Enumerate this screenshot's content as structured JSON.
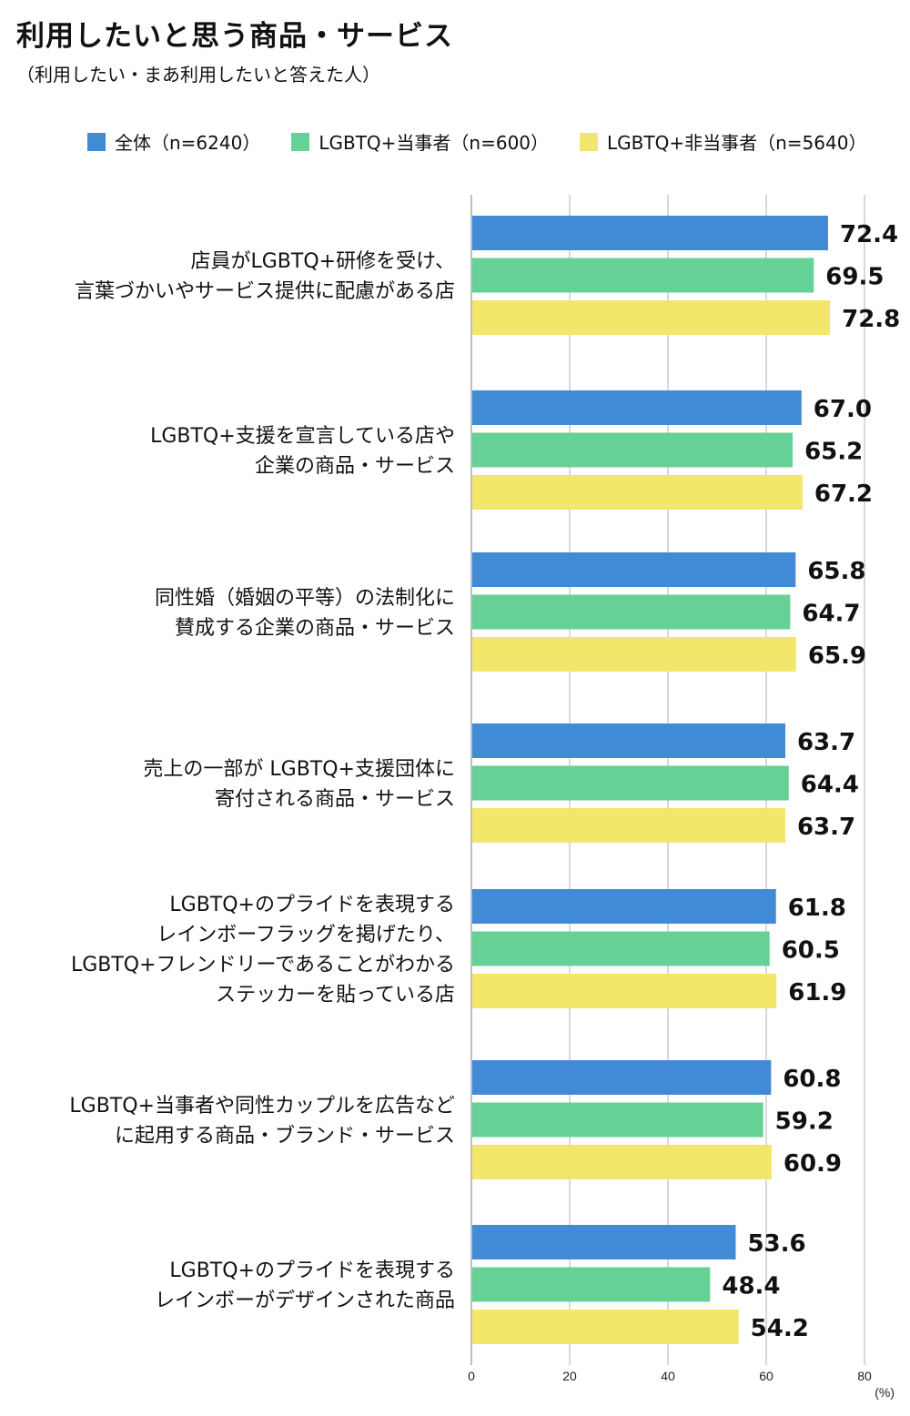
{
  "chart_data": {
    "type": "bar",
    "orientation": "horizontal",
    "title": "利用したいと思う商品・サービス",
    "subtitle": "（利用したい・まあ利用したいと答えた人）",
    "categories": [
      [
        "店員がLGBTQ+研修を受け、",
        "言葉づかいやサービス提供に配慮がある店"
      ],
      [
        "LGBTQ+支援を宣言している店や",
        "企業の商品・サービス"
      ],
      [
        "同性婚（婚姻の平等）の法制化に",
        "賛成する企業の商品・サービス"
      ],
      [
        "売上の一部が LGBTQ+支援団体に",
        "寄付される商品・サービス"
      ],
      [
        "LGBTQ+のプライドを表現する",
        "レインボーフラッグを掲げたり、",
        "LGBTQ+フレンドリーであることがわかる",
        "ステッカーを貼っている店"
      ],
      [
        "LGBTQ+当事者や同性カップルを広告など",
        "に起用する商品・ブランド・サービス"
      ],
      [
        "LGBTQ+のプライドを表現する",
        "レインボーがデザインされた商品"
      ]
    ],
    "series": [
      {
        "name": "全体（n=6240）",
        "color": "#418ad6",
        "values": [
          72.4,
          67.0,
          65.8,
          63.7,
          61.8,
          60.8,
          53.6
        ]
      },
      {
        "name": "LGBTQ+当事者（n=600）",
        "color": "#66d197",
        "values": [
          69.5,
          65.2,
          64.7,
          64.4,
          60.5,
          59.2,
          48.4
        ]
      },
      {
        "name": "LGBTQ+非当事者（n=5640）",
        "color": "#f3e76b",
        "values": [
          72.8,
          67.2,
          65.9,
          63.7,
          61.9,
          60.9,
          54.2
        ]
      }
    ],
    "xlim": [
      0,
      80
    ],
    "xticks": [
      "0",
      "20",
      "40",
      "60",
      "80"
    ],
    "xunit": "(%)",
    "grid": true,
    "legend": "top"
  }
}
